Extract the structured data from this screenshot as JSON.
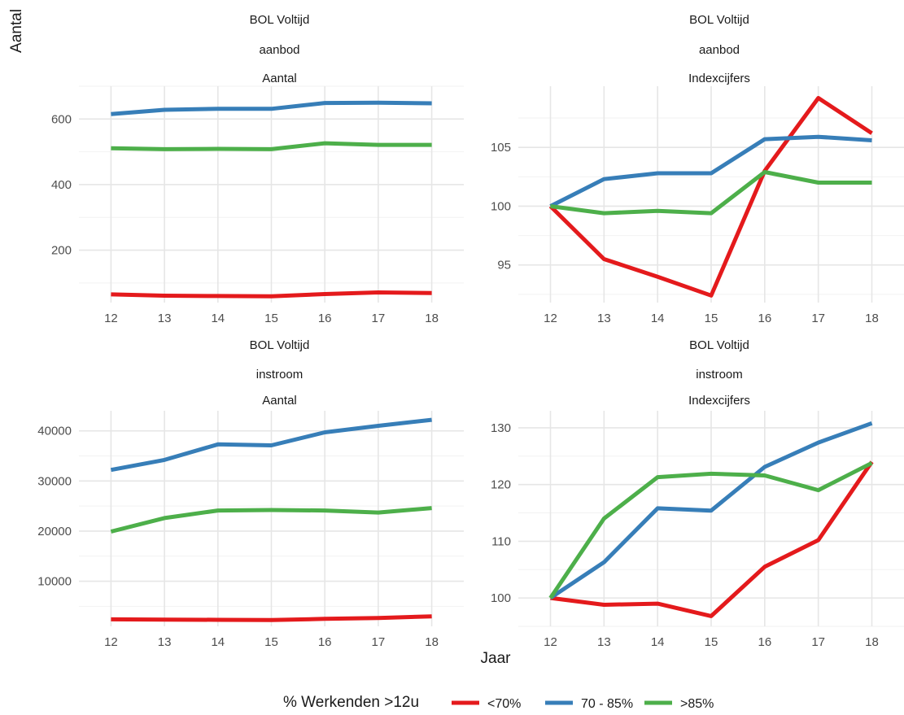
{
  "chart_data": {
    "type": "line",
    "xlabel": "Jaar",
    "ylabel": "Aantal",
    "legend": {
      "title": "% Werkenden >12u",
      "placement": "bottom",
      "entries": [
        {
          "label": "<70%",
          "color": "#e41a1c"
        },
        {
          "label": "70 - 85%",
          "color": "#377eb8"
        },
        {
          "label": ">85%",
          "color": "#4daf4a"
        }
      ]
    },
    "grid": true,
    "panels": [
      {
        "strip": [
          "BOL Voltijd",
          "aanbod",
          "Aantal"
        ],
        "x": [
          12,
          13,
          14,
          15,
          16,
          17,
          18
        ],
        "ylim": [
          40,
          700
        ],
        "yticks": [
          200,
          400,
          600
        ],
        "series": [
          {
            "name": "<70%",
            "color": "#e41a1c",
            "values": [
              65,
              61,
              60,
              59,
              66,
              71,
              69
            ]
          },
          {
            "name": "70 - 85%",
            "color": "#377eb8",
            "values": [
              615,
              628,
              631,
              631,
              649,
              650,
              648
            ]
          },
          {
            "name": ">85%",
            "color": "#4daf4a",
            "values": [
              511,
              508,
              509,
              508,
              526,
              521,
              521
            ]
          }
        ]
      },
      {
        "strip": [
          "BOL Voltijd",
          "aanbod",
          "Indexcijfers"
        ],
        "x": [
          12,
          13,
          14,
          15,
          16,
          17,
          18
        ],
        "ylim": [
          91.8,
          110.2
        ],
        "yticks": [
          95,
          100,
          105
        ],
        "series": [
          {
            "name": "<70%",
            "color": "#e41a1c",
            "values": [
              100,
              95.5,
              94,
              92.4,
              103,
              109.2,
              106.2
            ]
          },
          {
            "name": "70 - 85%",
            "color": "#377eb8",
            "values": [
              100,
              102.3,
              102.8,
              102.8,
              105.7,
              105.9,
              105.6
            ]
          },
          {
            "name": ">85%",
            "color": "#4daf4a",
            "values": [
              100,
              99.4,
              99.6,
              99.4,
              102.9,
              102,
              102
            ]
          }
        ]
      },
      {
        "strip": [
          "BOL Voltijd",
          "instroom",
          "Aantal"
        ],
        "x": [
          12,
          13,
          14,
          15,
          16,
          17,
          18
        ],
        "ylim": [
          1000,
          44000
        ],
        "yticks": [
          10000,
          20000,
          30000,
          40000
        ],
        "series": [
          {
            "name": "<70%",
            "color": "#e41a1c",
            "values": [
              2400,
              2350,
              2300,
              2250,
              2500,
              2650,
              3000
            ]
          },
          {
            "name": "70 - 85%",
            "color": "#377eb8",
            "values": [
              32200,
              34200,
              37300,
              37100,
              39700,
              41000,
              42200
            ]
          },
          {
            "name": ">85%",
            "color": "#4daf4a",
            "values": [
              19900,
              22600,
              24100,
              24200,
              24100,
              23700,
              24600
            ]
          }
        ]
      },
      {
        "strip": [
          "BOL Voltijd",
          "instroom",
          "Indexcijfers"
        ],
        "x": [
          12,
          13,
          14,
          15,
          16,
          17,
          18
        ],
        "ylim": [
          95,
          133
        ],
        "yticks": [
          100,
          110,
          120,
          130
        ],
        "series": [
          {
            "name": "<70%",
            "color": "#e41a1c",
            "values": [
              100,
              98.8,
              99,
              96.8,
              105.5,
              110.2,
              124
            ]
          },
          {
            "name": "70 - 85%",
            "color": "#377eb8",
            "values": [
              100,
              106.3,
              115.8,
              115.4,
              123.1,
              127.4,
              130.8
            ]
          },
          {
            "name": ">85%",
            "color": "#4daf4a",
            "values": [
              100,
              114,
              121.3,
              121.9,
              121.6,
              119,
              123.8
            ]
          }
        ]
      }
    ]
  }
}
